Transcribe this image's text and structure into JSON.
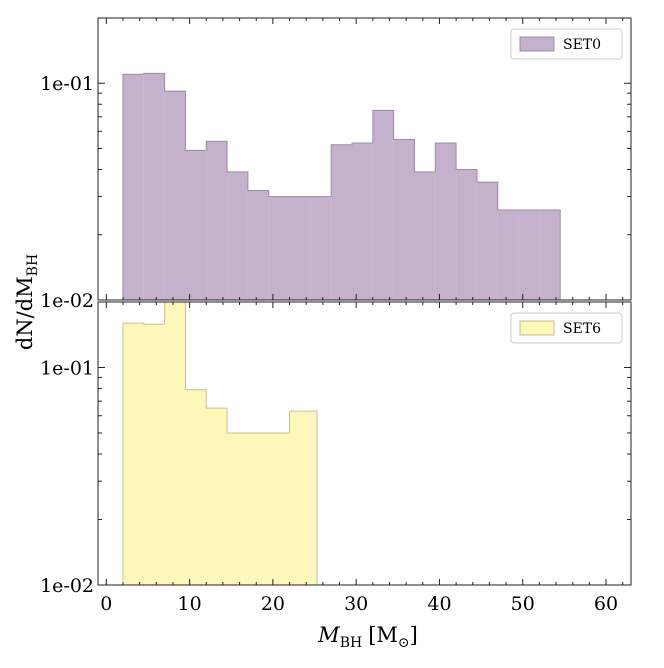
{
  "chart_data": {
    "type": "bar",
    "subtype": "stepped-histogram",
    "shared_x": true,
    "xlabel": "M_BH [M_⊙]",
    "xlabel_parts": {
      "main": "M",
      "sub": "BH",
      "unit_open": "[M",
      "unit_sub": "⊙",
      "unit_close": "]"
    },
    "ylabel": "dN/dM_BH",
    "ylabel_parts": {
      "main": "dN/dM",
      "sub": "BH"
    },
    "xlim": [
      -1,
      63
    ],
    "xticks": [
      0,
      10,
      20,
      30,
      40,
      50,
      60
    ],
    "xtick_labels": [
      "0",
      "10",
      "20",
      "30",
      "40",
      "50",
      "60"
    ],
    "bin_width": 2.5,
    "panels": [
      {
        "name": "SET0",
        "legend_position": "top-right",
        "color": "#c4b1cb",
        "edge_color": "#9d8aa8",
        "y_scale": "log",
        "ylim": [
          0.01,
          0.2
        ],
        "ytick_labels": [
          "1e-01",
          "1e-02"
        ],
        "bin_edges": [
          2,
          4.5,
          7,
          9.5,
          12,
          14.5,
          17,
          19.5,
          22,
          24.5,
          27,
          29.5,
          32,
          34.5,
          37,
          39.5,
          42,
          44.5,
          47,
          49.5,
          52,
          54.5
        ],
        "values": [
          0.11,
          0.111,
          0.092,
          0.049,
          0.054,
          0.039,
          0.032,
          0.03,
          0.03,
          0.03,
          0.052,
          0.053,
          0.075,
          0.055,
          0.039,
          0.053,
          0.04,
          0.035,
          0.026,
          0.026,
          0.026
        ]
      },
      {
        "name": "SET6",
        "legend_position": "top-right",
        "color": "#fdf7b9",
        "edge_color": "#c8c28f",
        "y_scale": "log",
        "ylim": [
          0.01,
          0.2
        ],
        "ytick_labels": [
          "1e-01",
          "1e-02"
        ],
        "bin_edges": [
          2,
          4.5,
          7,
          9.5,
          12,
          14.5,
          17,
          19.5,
          22,
          24.5,
          25.3
        ],
        "values": [
          0.16,
          0.158,
          0.2,
          0.079,
          0.065,
          0.05,
          0.05,
          0.05,
          0.063,
          0.063
        ]
      }
    ]
  }
}
